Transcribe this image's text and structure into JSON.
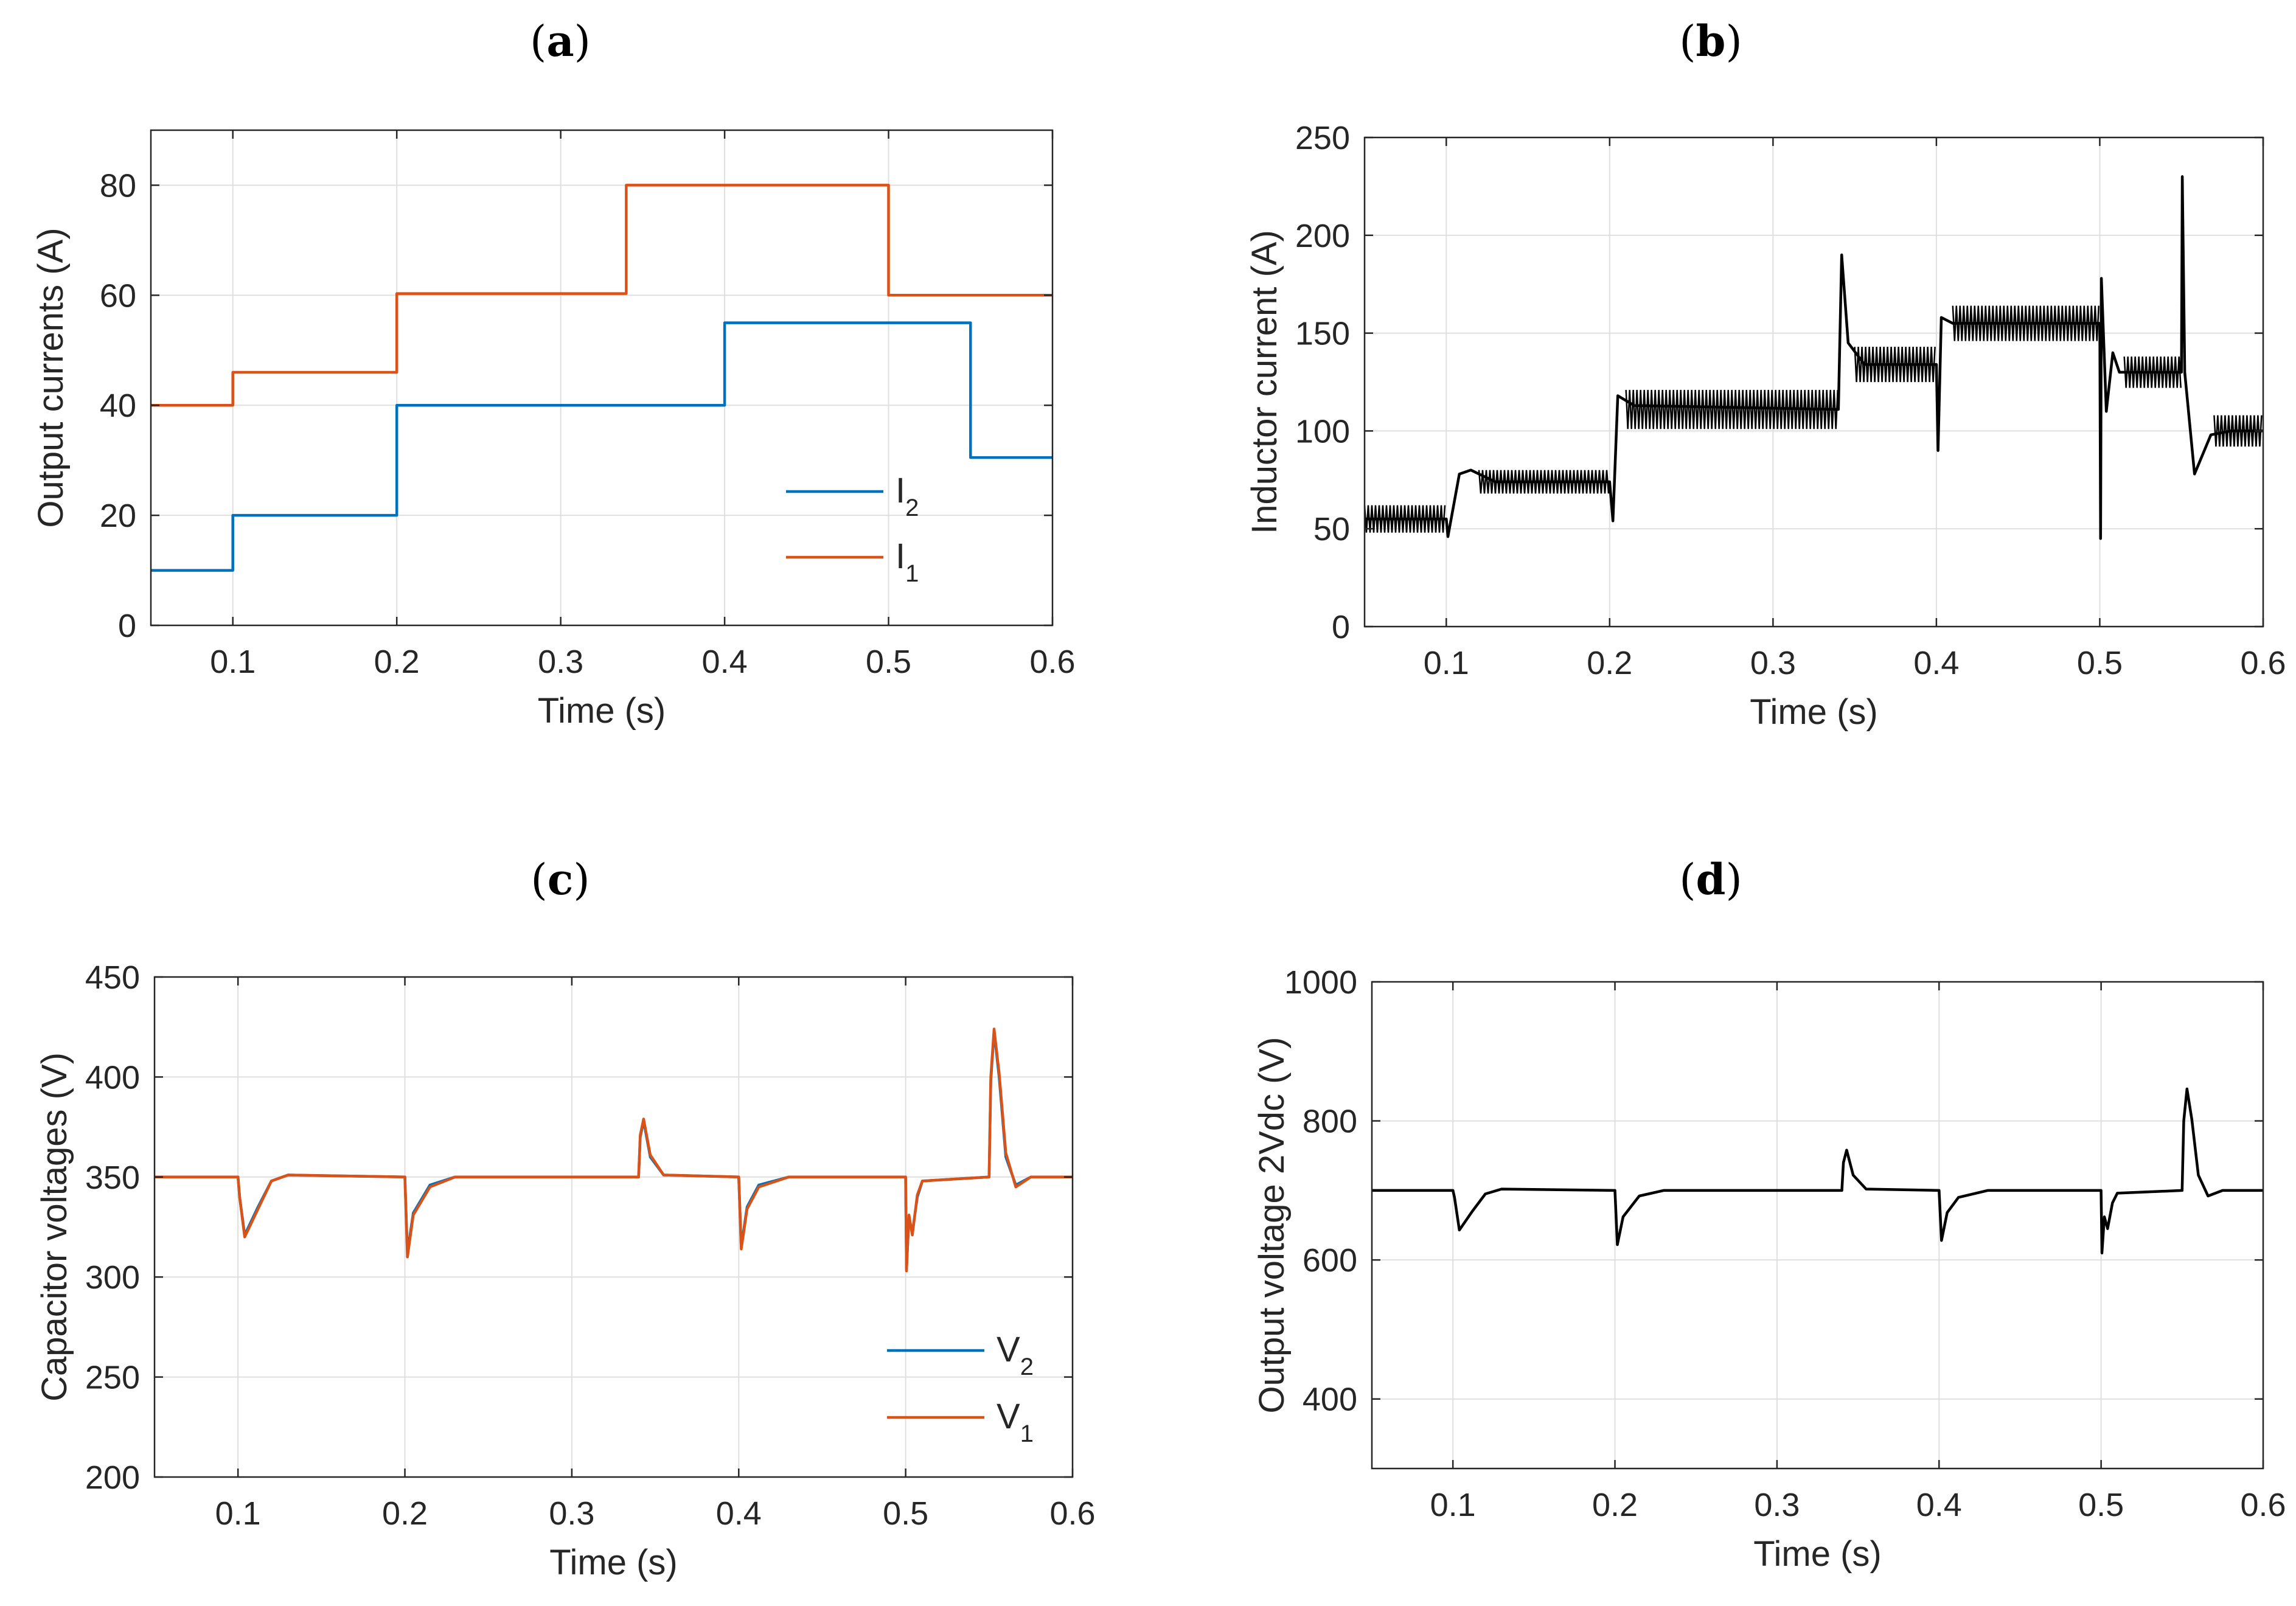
{
  "chart_data": [
    {
      "id": "a",
      "type": "line",
      "panel_label": "a",
      "xlabel": "Time (s)",
      "ylabel": "Output currents (A)",
      "xlim": [
        0.05,
        0.6
      ],
      "ylim": [
        0,
        90
      ],
      "xticks": [
        0.1,
        0.2,
        0.3,
        0.4,
        0.5,
        0.6
      ],
      "yticks": [
        0,
        20,
        40,
        60,
        80
      ],
      "legend": {
        "position": "bottom-right"
      },
      "series": [
        {
          "name": "I",
          "sub": "2",
          "color": "#0072BD",
          "points": [
            [
              0.05,
              10
            ],
            [
              0.1,
              10
            ],
            [
              0.1,
              20
            ],
            [
              0.2,
              20
            ],
            [
              0.2,
              40
            ],
            [
              0.4,
              40
            ],
            [
              0.4,
              55
            ],
            [
              0.55,
              55
            ],
            [
              0.55,
              30.5
            ],
            [
              0.6,
              30.5
            ]
          ]
        },
        {
          "name": "I",
          "sub": "1",
          "color": "#D95319",
          "points": [
            [
              0.05,
              40
            ],
            [
              0.1,
              40
            ],
            [
              0.1,
              46
            ],
            [
              0.2,
              46
            ],
            [
              0.2,
              60.3
            ],
            [
              0.34,
              60.3
            ],
            [
              0.34,
              80
            ],
            [
              0.5,
              80
            ],
            [
              0.5,
              60
            ],
            [
              0.6,
              60
            ]
          ]
        }
      ]
    },
    {
      "id": "b",
      "type": "line",
      "panel_label": "b",
      "xlabel": "Time (s)",
      "ylabel": "Inductor current (A)",
      "xlim": [
        0.05,
        0.6
      ],
      "ylim": [
        0,
        250
      ],
      "xticks": [
        0.1,
        0.2,
        0.3,
        0.4,
        0.5,
        0.6
      ],
      "yticks": [
        0,
        50,
        100,
        150,
        200,
        250
      ],
      "series": [
        {
          "name": "Inductor current",
          "color": "#000000",
          "points": [
            [
              0.05,
              55
            ],
            [
              0.1,
              55
            ],
            [
              0.101,
              46
            ],
            [
              0.108,
              78
            ],
            [
              0.115,
              80
            ],
            [
              0.13,
              74
            ],
            [
              0.2,
              74
            ],
            [
              0.202,
              54
            ],
            [
              0.205,
              118
            ],
            [
              0.215,
              113
            ],
            [
              0.34,
              111
            ],
            [
              0.342,
              190
            ],
            [
              0.346,
              145
            ],
            [
              0.356,
              134
            ],
            [
              0.4,
              134
            ],
            [
              0.401,
              90
            ],
            [
              0.403,
              158
            ],
            [
              0.41,
              155
            ],
            [
              0.5,
              155
            ],
            [
              0.5005,
              45
            ],
            [
              0.501,
              178
            ],
            [
              0.504,
              110
            ],
            [
              0.508,
              140
            ],
            [
              0.512,
              130
            ],
            [
              0.55,
              130
            ],
            [
              0.5505,
              230
            ],
            [
              0.552,
              130
            ],
            [
              0.558,
              78
            ],
            [
              0.568,
              98
            ],
            [
              0.58,
              100
            ],
            [
              0.6,
              100
            ]
          ],
          "band_segments": [
            [
              0.05,
              0.1,
              55,
              7
            ],
            [
              0.12,
              0.2,
              74,
              6
            ],
            [
              0.21,
              0.34,
              111,
              10
            ],
            [
              0.35,
              0.4,
              134,
              9
            ],
            [
              0.41,
              0.5,
              155,
              9
            ],
            [
              0.515,
              0.55,
              130,
              8
            ],
            [
              0.57,
              0.6,
              100,
              8
            ]
          ]
        }
      ]
    },
    {
      "id": "c",
      "type": "line",
      "panel_label": "c",
      "xlabel": "Time (s)",
      "ylabel": "Capacitor voltages (V)",
      "xlim": [
        0.05,
        0.6
      ],
      "ylim": [
        200,
        450
      ],
      "xticks": [
        0.1,
        0.2,
        0.3,
        0.4,
        0.5,
        0.6
      ],
      "yticks": [
        200,
        250,
        300,
        350,
        400,
        450
      ],
      "legend": {
        "position": "bottom-right"
      },
      "series": [
        {
          "name": "V",
          "sub": "2",
          "color": "#0072BD",
          "points": [
            [
              0.05,
              350
            ],
            [
              0.1,
              350
            ],
            [
              0.101,
              340
            ],
            [
              0.104,
              321
            ],
            [
              0.112,
              335
            ],
            [
              0.12,
              348
            ],
            [
              0.13,
              351
            ],
            [
              0.2,
              350
            ],
            [
              0.2015,
              312
            ],
            [
              0.205,
              332
            ],
            [
              0.215,
              346
            ],
            [
              0.23,
              350
            ],
            [
              0.34,
              350
            ],
            [
              0.341,
              370
            ],
            [
              0.343,
              378
            ],
            [
              0.347,
              360
            ],
            [
              0.355,
              351
            ],
            [
              0.4,
              350
            ],
            [
              0.4015,
              315
            ],
            [
              0.405,
              335
            ],
            [
              0.412,
              346
            ],
            [
              0.43,
              350
            ],
            [
              0.5,
              350
            ],
            [
              0.5005,
              304
            ],
            [
              0.502,
              330
            ],
            [
              0.504,
              322
            ],
            [
              0.507,
              340
            ],
            [
              0.51,
              348
            ],
            [
              0.55,
              350
            ],
            [
              0.551,
              398
            ],
            [
              0.553,
              423
            ],
            [
              0.556,
              400
            ],
            [
              0.56,
              360
            ],
            [
              0.566,
              346
            ],
            [
              0.575,
              350
            ],
            [
              0.6,
              350
            ]
          ]
        },
        {
          "name": "V",
          "sub": "1",
          "color": "#D95319",
          "points": [
            [
              0.05,
              350
            ],
            [
              0.1,
              350
            ],
            [
              0.101,
              340
            ],
            [
              0.104,
              320
            ],
            [
              0.112,
              334
            ],
            [
              0.12,
              348
            ],
            [
              0.13,
              351
            ],
            [
              0.2,
              350
            ],
            [
              0.2015,
              310
            ],
            [
              0.205,
              331
            ],
            [
              0.215,
              345
            ],
            [
              0.23,
              350
            ],
            [
              0.34,
              350
            ],
            [
              0.341,
              371
            ],
            [
              0.343,
              379
            ],
            [
              0.347,
              361
            ],
            [
              0.355,
              351
            ],
            [
              0.4,
              350
            ],
            [
              0.4015,
              314
            ],
            [
              0.405,
              334
            ],
            [
              0.412,
              345
            ],
            [
              0.43,
              350
            ],
            [
              0.5,
              350
            ],
            [
              0.5005,
              303
            ],
            [
              0.502,
              331
            ],
            [
              0.504,
              321
            ],
            [
              0.507,
              341
            ],
            [
              0.51,
              348
            ],
            [
              0.55,
              350
            ],
            [
              0.551,
              400
            ],
            [
              0.553,
              424
            ],
            [
              0.556,
              402
            ],
            [
              0.56,
              362
            ],
            [
              0.566,
              345
            ],
            [
              0.575,
              350
            ],
            [
              0.6,
              350
            ]
          ]
        }
      ]
    },
    {
      "id": "d",
      "type": "line",
      "panel_label": "d",
      "xlabel": "Time (s)",
      "ylabel": "Output voltage 2Vdc (V)",
      "xlim": [
        0.05,
        0.6
      ],
      "ylim": [
        300,
        1000
      ],
      "xticks": [
        0.1,
        0.2,
        0.3,
        0.4,
        0.5,
        0.6
      ],
      "yticks": [
        400,
        600,
        800,
        1000
      ],
      "series": [
        {
          "name": "Output voltage 2Vdc",
          "color": "#000000",
          "points": [
            [
              0.05,
              700
            ],
            [
              0.1,
              700
            ],
            [
              0.101,
              690
            ],
            [
              0.104,
              643
            ],
            [
              0.112,
              670
            ],
            [
              0.12,
              695
            ],
            [
              0.13,
              702
            ],
            [
              0.2,
              700
            ],
            [
              0.2015,
              622
            ],
            [
              0.205,
              662
            ],
            [
              0.215,
              692
            ],
            [
              0.23,
              700
            ],
            [
              0.34,
              700
            ],
            [
              0.341,
              740
            ],
            [
              0.343,
              758
            ],
            [
              0.347,
              722
            ],
            [
              0.355,
              702
            ],
            [
              0.4,
              700
            ],
            [
              0.4015,
              628
            ],
            [
              0.405,
              668
            ],
            [
              0.412,
              690
            ],
            [
              0.43,
              700
            ],
            [
              0.5,
              700
            ],
            [
              0.5005,
              610
            ],
            [
              0.502,
              662
            ],
            [
              0.504,
              645
            ],
            [
              0.507,
              682
            ],
            [
              0.51,
              696
            ],
            [
              0.55,
              700
            ],
            [
              0.551,
              800
            ],
            [
              0.553,
              846
            ],
            [
              0.556,
              802
            ],
            [
              0.56,
              722
            ],
            [
              0.566,
              692
            ],
            [
              0.575,
              700
            ],
            [
              0.6,
              700
            ]
          ]
        }
      ]
    }
  ]
}
